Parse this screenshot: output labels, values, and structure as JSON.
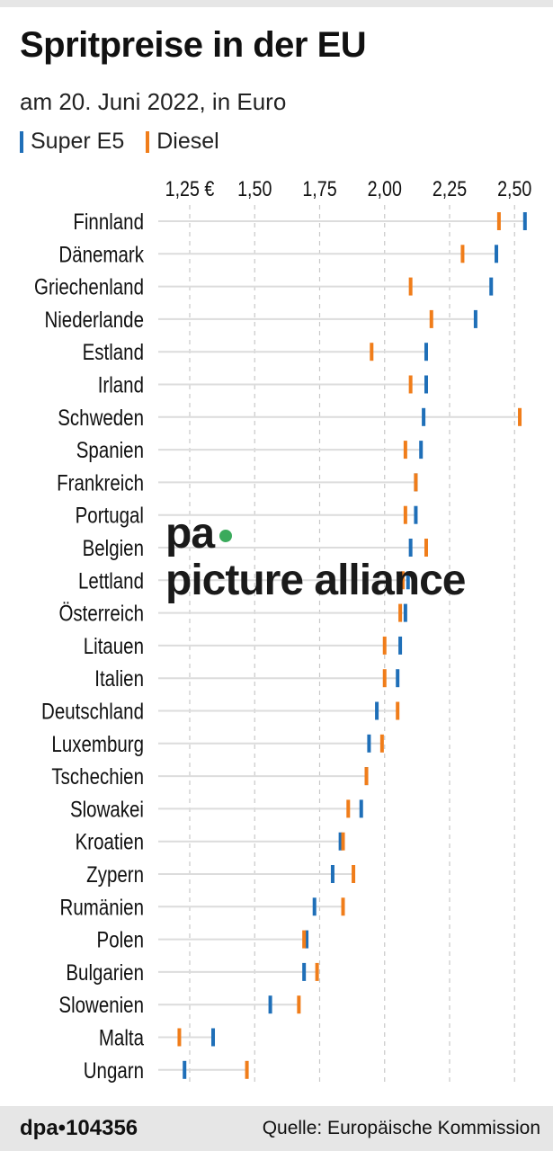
{
  "chart_data": {
    "type": "dot",
    "title": "Spritpreise in der EU",
    "subtitle": "am 20. Juni 2022, in Euro",
    "xlim": [
      1.18,
      2.58
    ],
    "xticks": [
      1.25,
      1.5,
      1.75,
      2.0,
      2.25,
      2.5
    ],
    "xtick_labels": [
      "1,25 €",
      "1,50",
      "1,75",
      "2,00",
      "2,25",
      "2,50"
    ],
    "grid": true,
    "legend_position": "top-left",
    "categories": [
      "Finnland",
      "Dänemark",
      "Griechenland",
      "Niederlande",
      "Estland",
      "Irland",
      "Schweden",
      "Spanien",
      "Frankreich",
      "Portugal",
      "Belgien",
      "Lettland",
      "Österreich",
      "Litauen",
      "Italien",
      "Deutschland",
      "Luxemburg",
      "Tschechien",
      "Slowakei",
      "Kroatien",
      "Zypern",
      "Rumänien",
      "Polen",
      "Bulgarien",
      "Slowenien",
      "Malta",
      "Ungarn"
    ],
    "series": [
      {
        "name": "Super E5",
        "color": "#1f6fb8",
        "values": [
          2.54,
          2.43,
          2.41,
          2.35,
          2.16,
          2.16,
          2.15,
          2.14,
          2.12,
          2.12,
          2.1,
          2.09,
          2.08,
          2.06,
          2.05,
          1.97,
          1.94,
          1.93,
          1.91,
          1.83,
          1.8,
          1.73,
          1.7,
          1.69,
          1.56,
          1.34,
          1.23
        ]
      },
      {
        "name": "Diesel",
        "color": "#f07d1a",
        "values": [
          2.44,
          2.3,
          2.1,
          2.18,
          1.95,
          2.1,
          2.52,
          2.08,
          2.12,
          2.08,
          2.16,
          2.07,
          2.06,
          2.0,
          2.0,
          2.05,
          1.99,
          1.93,
          1.86,
          1.84,
          1.88,
          1.84,
          1.69,
          1.74,
          1.67,
          1.21,
          1.47
        ]
      }
    ]
  },
  "footer": {
    "credit": "dpa•104356",
    "source": "Quelle: Europäische Kommission"
  },
  "watermark": {
    "left": "pa",
    "right": "picture alliance"
  }
}
